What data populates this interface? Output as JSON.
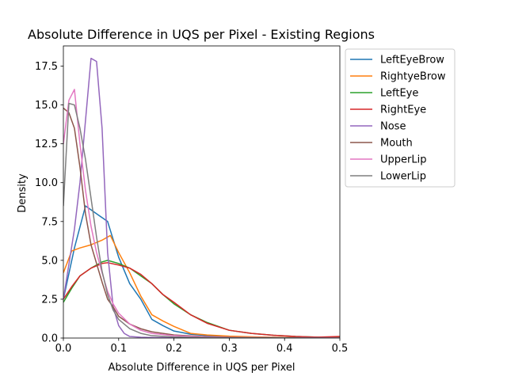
{
  "chart_data": {
    "type": "line",
    "title": "Absolute Difference in UQS per Pixel - Existing Regions",
    "xlabel": "Absolute Difference in UQS per Pixel",
    "ylabel": "Density",
    "xlim": [
      0,
      0.5
    ],
    "ylim": [
      0,
      18.8
    ],
    "xticks": [
      0.0,
      0.1,
      0.2,
      0.3,
      0.4,
      0.5
    ],
    "xtick_labels": [
      "0.0",
      "0.1",
      "0.2",
      "0.3",
      "0.4",
      "0.5"
    ],
    "yticks": [
      0.0,
      2.5,
      5.0,
      7.5,
      10.0,
      12.5,
      15.0,
      17.5
    ],
    "ytick_labels": [
      "0.0",
      "2.5",
      "5.0",
      "7.5",
      "10.0",
      "12.5",
      "15.0",
      "17.5"
    ],
    "grid": false,
    "legend_position": "outside-right-top",
    "series": [
      {
        "name": "LeftEyeBrow",
        "color": "#1f77b4",
        "x": [
          0.0,
          0.02,
          0.04,
          0.06,
          0.08,
          0.1,
          0.12,
          0.14,
          0.16,
          0.18,
          0.2,
          0.23,
          0.27,
          0.3,
          0.35,
          0.4,
          0.45,
          0.5
        ],
        "y": [
          2.5,
          5.8,
          8.5,
          8.0,
          7.5,
          5.2,
          3.5,
          2.5,
          1.2,
          0.8,
          0.45,
          0.25,
          0.12,
          0.08,
          0.05,
          0.03,
          0.02,
          0.01
        ]
      },
      {
        "name": "RightyeBrow",
        "color": "#ff7f0e",
        "x": [
          0.0,
          0.015,
          0.03,
          0.05,
          0.07,
          0.085,
          0.1,
          0.12,
          0.14,
          0.16,
          0.18,
          0.2,
          0.23,
          0.26,
          0.3,
          0.35,
          0.4,
          0.45,
          0.5
        ],
        "y": [
          4.2,
          5.6,
          5.8,
          6.0,
          6.3,
          6.6,
          5.5,
          4.2,
          2.7,
          1.5,
          1.1,
          0.75,
          0.3,
          0.2,
          0.12,
          0.07,
          0.04,
          0.02,
          0.01
        ]
      },
      {
        "name": "LeftEye",
        "color": "#2ca02c",
        "x": [
          0.0,
          0.015,
          0.03,
          0.05,
          0.07,
          0.08,
          0.1,
          0.12,
          0.14,
          0.16,
          0.18,
          0.2,
          0.23,
          0.26,
          0.3,
          0.34,
          0.38,
          0.42,
          0.46,
          0.5
        ],
        "y": [
          2.3,
          3.2,
          4.0,
          4.5,
          4.9,
          5.0,
          4.8,
          4.5,
          4.0,
          3.5,
          2.8,
          2.2,
          1.5,
          1.0,
          0.5,
          0.3,
          0.18,
          0.1,
          0.06,
          0.03
        ]
      },
      {
        "name": "RightEye",
        "color": "#d62728",
        "x": [
          0.0,
          0.015,
          0.03,
          0.05,
          0.07,
          0.08,
          0.1,
          0.12,
          0.14,
          0.16,
          0.18,
          0.2,
          0.23,
          0.26,
          0.3,
          0.34,
          0.38,
          0.42,
          0.46,
          0.5
        ],
        "y": [
          2.5,
          3.3,
          4.0,
          4.5,
          4.8,
          4.85,
          4.7,
          4.5,
          4.1,
          3.5,
          2.8,
          2.3,
          1.5,
          0.95,
          0.5,
          0.3,
          0.18,
          0.1,
          0.06,
          0.1
        ]
      },
      {
        "name": "Nose",
        "color": "#9467bd",
        "x": [
          0.0,
          0.02,
          0.03,
          0.04,
          0.05,
          0.06,
          0.07,
          0.08,
          0.09,
          0.1,
          0.11,
          0.12,
          0.14,
          0.16,
          0.2,
          0.3,
          0.4,
          0.5
        ],
        "y": [
          2.5,
          7.0,
          10.0,
          14.0,
          18.0,
          17.8,
          13.5,
          5.5,
          2.0,
          0.8,
          0.3,
          0.1,
          0.05,
          0.03,
          0.02,
          0.01,
          0.01,
          0.0
        ]
      },
      {
        "name": "Mouth",
        "color": "#8c564b",
        "x": [
          0.0,
          0.01,
          0.02,
          0.03,
          0.04,
          0.05,
          0.06,
          0.07,
          0.08,
          0.09,
          0.1,
          0.12,
          0.14,
          0.16,
          0.2,
          0.25,
          0.3,
          0.4,
          0.5
        ],
        "y": [
          14.8,
          14.5,
          13.5,
          11.0,
          8.0,
          6.0,
          4.8,
          3.6,
          2.5,
          2.0,
          1.4,
          0.9,
          0.6,
          0.4,
          0.2,
          0.1,
          0.05,
          0.02,
          0.01
        ]
      },
      {
        "name": "UpperLip",
        "color": "#e377c2",
        "x": [
          0.0,
          0.01,
          0.02,
          0.03,
          0.04,
          0.05,
          0.06,
          0.07,
          0.08,
          0.09,
          0.1,
          0.12,
          0.14,
          0.16,
          0.2,
          0.25,
          0.3,
          0.4,
          0.5
        ],
        "y": [
          12.5,
          15.3,
          16.0,
          12.5,
          9.5,
          7.2,
          5.5,
          4.2,
          3.0,
          2.2,
          1.6,
          0.9,
          0.5,
          0.3,
          0.15,
          0.08,
          0.04,
          0.02,
          0.01
        ]
      },
      {
        "name": "LowerLip",
        "color": "#7f7f7f",
        "x": [
          0.0,
          0.01,
          0.02,
          0.03,
          0.04,
          0.05,
          0.06,
          0.07,
          0.08,
          0.09,
          0.1,
          0.12,
          0.14,
          0.16,
          0.2,
          0.25,
          0.3,
          0.4,
          0.5
        ],
        "y": [
          8.5,
          15.1,
          15.0,
          13.5,
          11.5,
          9.0,
          6.5,
          4.3,
          2.8,
          1.8,
          1.2,
          0.6,
          0.3,
          0.15,
          0.07,
          0.04,
          0.02,
          0.01,
          0.0
        ]
      }
    ]
  }
}
